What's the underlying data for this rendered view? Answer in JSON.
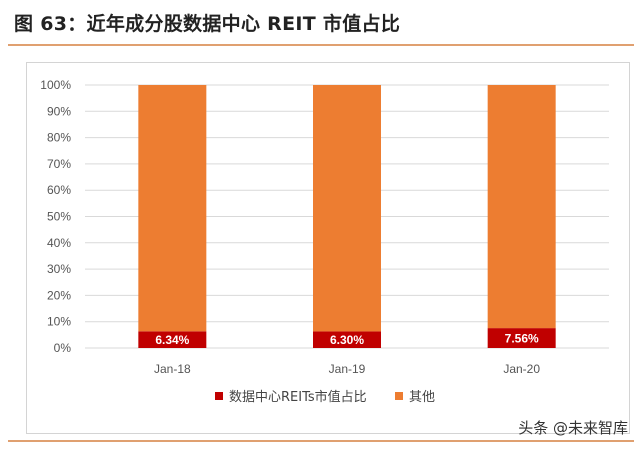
{
  "title": "图 63：近年成分股数据中心 REIT 市值占比",
  "watermark": "头条 @未来智库",
  "colors": {
    "series1": "#c00000",
    "series2": "#ed7d31",
    "grid": "#d9d9d9",
    "rule": "#e0a070"
  },
  "chart_data": {
    "type": "bar",
    "stacked": true,
    "percent": true,
    "categories": [
      "Jan-18",
      "Jan-19",
      "Jan-20"
    ],
    "series": [
      {
        "name": "数据中心REITs市值占比",
        "values": [
          6.34,
          6.3,
          7.56
        ],
        "labels": [
          "6.34%",
          "6.30%",
          "7.56%"
        ]
      },
      {
        "name": "其他",
        "values": [
          93.66,
          93.7,
          92.44
        ]
      }
    ],
    "ylim": [
      0,
      100
    ],
    "yticks": [
      "0%",
      "10%",
      "20%",
      "30%",
      "40%",
      "50%",
      "60%",
      "70%",
      "80%",
      "90%",
      "100%"
    ],
    "grid": true,
    "legend": "bottom"
  }
}
